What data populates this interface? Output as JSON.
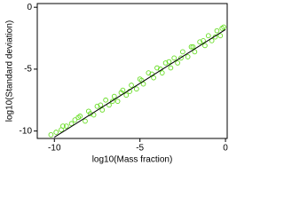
{
  "chart_data": {
    "type": "scatter",
    "xlabel": "log10(Mass fraction)",
    "ylabel": "log10(Standard deviation)",
    "x": [
      -10.2,
      -9.9,
      -9.6,
      -9.3,
      -9.0,
      -8.8,
      -8.5,
      -8.2,
      -8.0,
      -7.7,
      -7.5,
      -7.2,
      -7.0,
      -6.8,
      -6.5,
      -6.3,
      -6.0,
      -5.8,
      -5.5,
      -5.2,
      -5.0,
      -4.8,
      -4.5,
      -4.2,
      -4.0,
      -3.7,
      -3.5,
      -3.2,
      -3.0,
      -2.8,
      -2.5,
      -2.2,
      -2.0,
      -1.8,
      -1.5,
      -1.2,
      -1.0,
      -0.8,
      -0.5,
      -0.3,
      -0.1,
      -9.5,
      -8.6,
      -7.9,
      -7.3,
      -6.6,
      -6.1,
      -5.6,
      -4.9,
      -4.3,
      -3.8,
      -3.3,
      -2.6,
      -1.9,
      -1.3,
      -0.6,
      -0.2
    ],
    "values": [
      -10.3,
      -10.1,
      -9.9,
      -9.6,
      -9.4,
      -9.1,
      -8.8,
      -9.2,
      -8.4,
      -8.7,
      -8.0,
      -8.3,
      -7.5,
      -7.9,
      -7.2,
      -7.6,
      -6.7,
      -7.1,
      -6.3,
      -6.6,
      -5.8,
      -6.2,
      -5.3,
      -5.7,
      -4.9,
      -5.3,
      -4.5,
      -4.9,
      -4.1,
      -4.5,
      -3.6,
      -4.0,
      -3.2,
      -3.6,
      -2.8,
      -3.1,
      -2.3,
      -2.7,
      -1.9,
      -2.3,
      -1.6,
      -9.6,
      -8.9,
      -8.6,
      -7.9,
      -7.6,
      -6.9,
      -6.8,
      -5.9,
      -5.4,
      -5.0,
      -4.4,
      -4.1,
      -3.2,
      -2.7,
      -2.4,
      -1.7
    ],
    "color": "#66dd22",
    "fit_line": {
      "x": [
        -10,
        0
      ],
      "values": [
        -10.5,
        -1.8
      ],
      "color": "#000000"
    },
    "xlim": [
      -11,
      0.1
    ],
    "ylim": [
      -10.6,
      0.3
    ],
    "xticks": [
      -10,
      -5,
      0
    ],
    "yticks": [
      0,
      -5,
      -10
    ]
  }
}
